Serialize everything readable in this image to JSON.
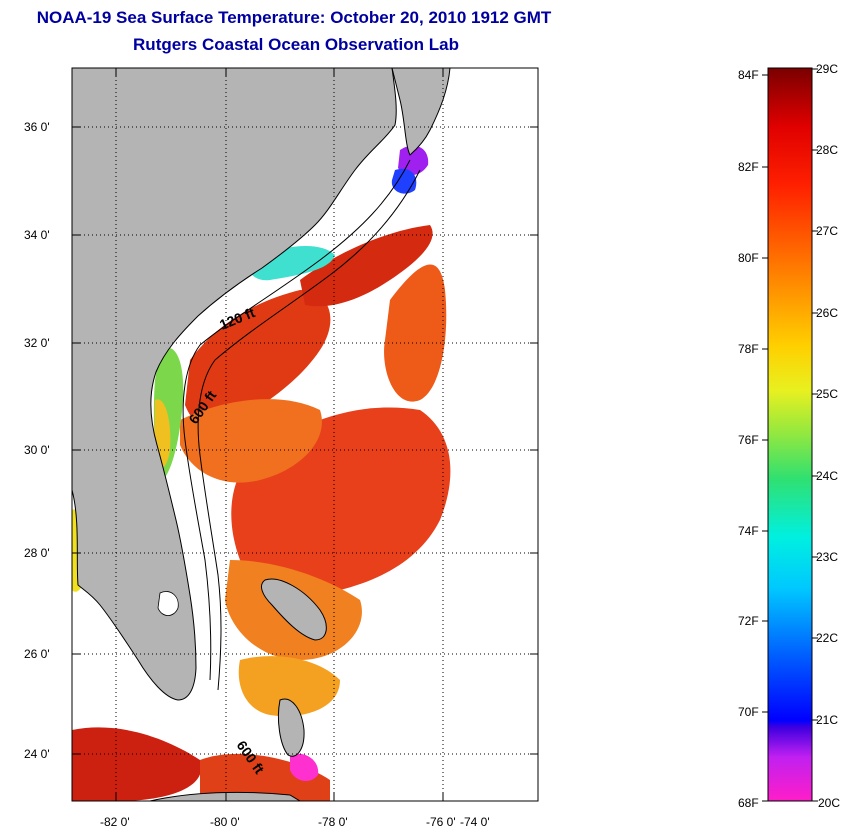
{
  "title": {
    "line1": "NOAA-19 Sea Surface Temperature:  October 20, 2010 1912 GMT",
    "line2": "Rutgers Coastal Ocean Observation Lab"
  },
  "map": {
    "lat_ticks": [
      "36 0'",
      "34 0'",
      "32 0'",
      "30 0'",
      "28 0'",
      "26 0'",
      "24 0'"
    ],
    "lon_ticks": [
      "-82 0'",
      "-80 0'",
      "-78 0'",
      "-76 0'",
      "-74 0'"
    ],
    "contour_labels": [
      "120 ft",
      "600 ft",
      "600 ft"
    ],
    "colors": {
      "land": "#b4b4b4",
      "cloud": "#ffffff"
    }
  },
  "colorbar": {
    "f_labels": [
      "84F",
      "82F",
      "80F",
      "78F",
      "76F",
      "74F",
      "72F",
      "70F",
      "68F"
    ],
    "c_labels": [
      "29C",
      "28C",
      "27C",
      "26C",
      "25C",
      "24C",
      "23C",
      "22C",
      "21C",
      "20C"
    ]
  }
}
